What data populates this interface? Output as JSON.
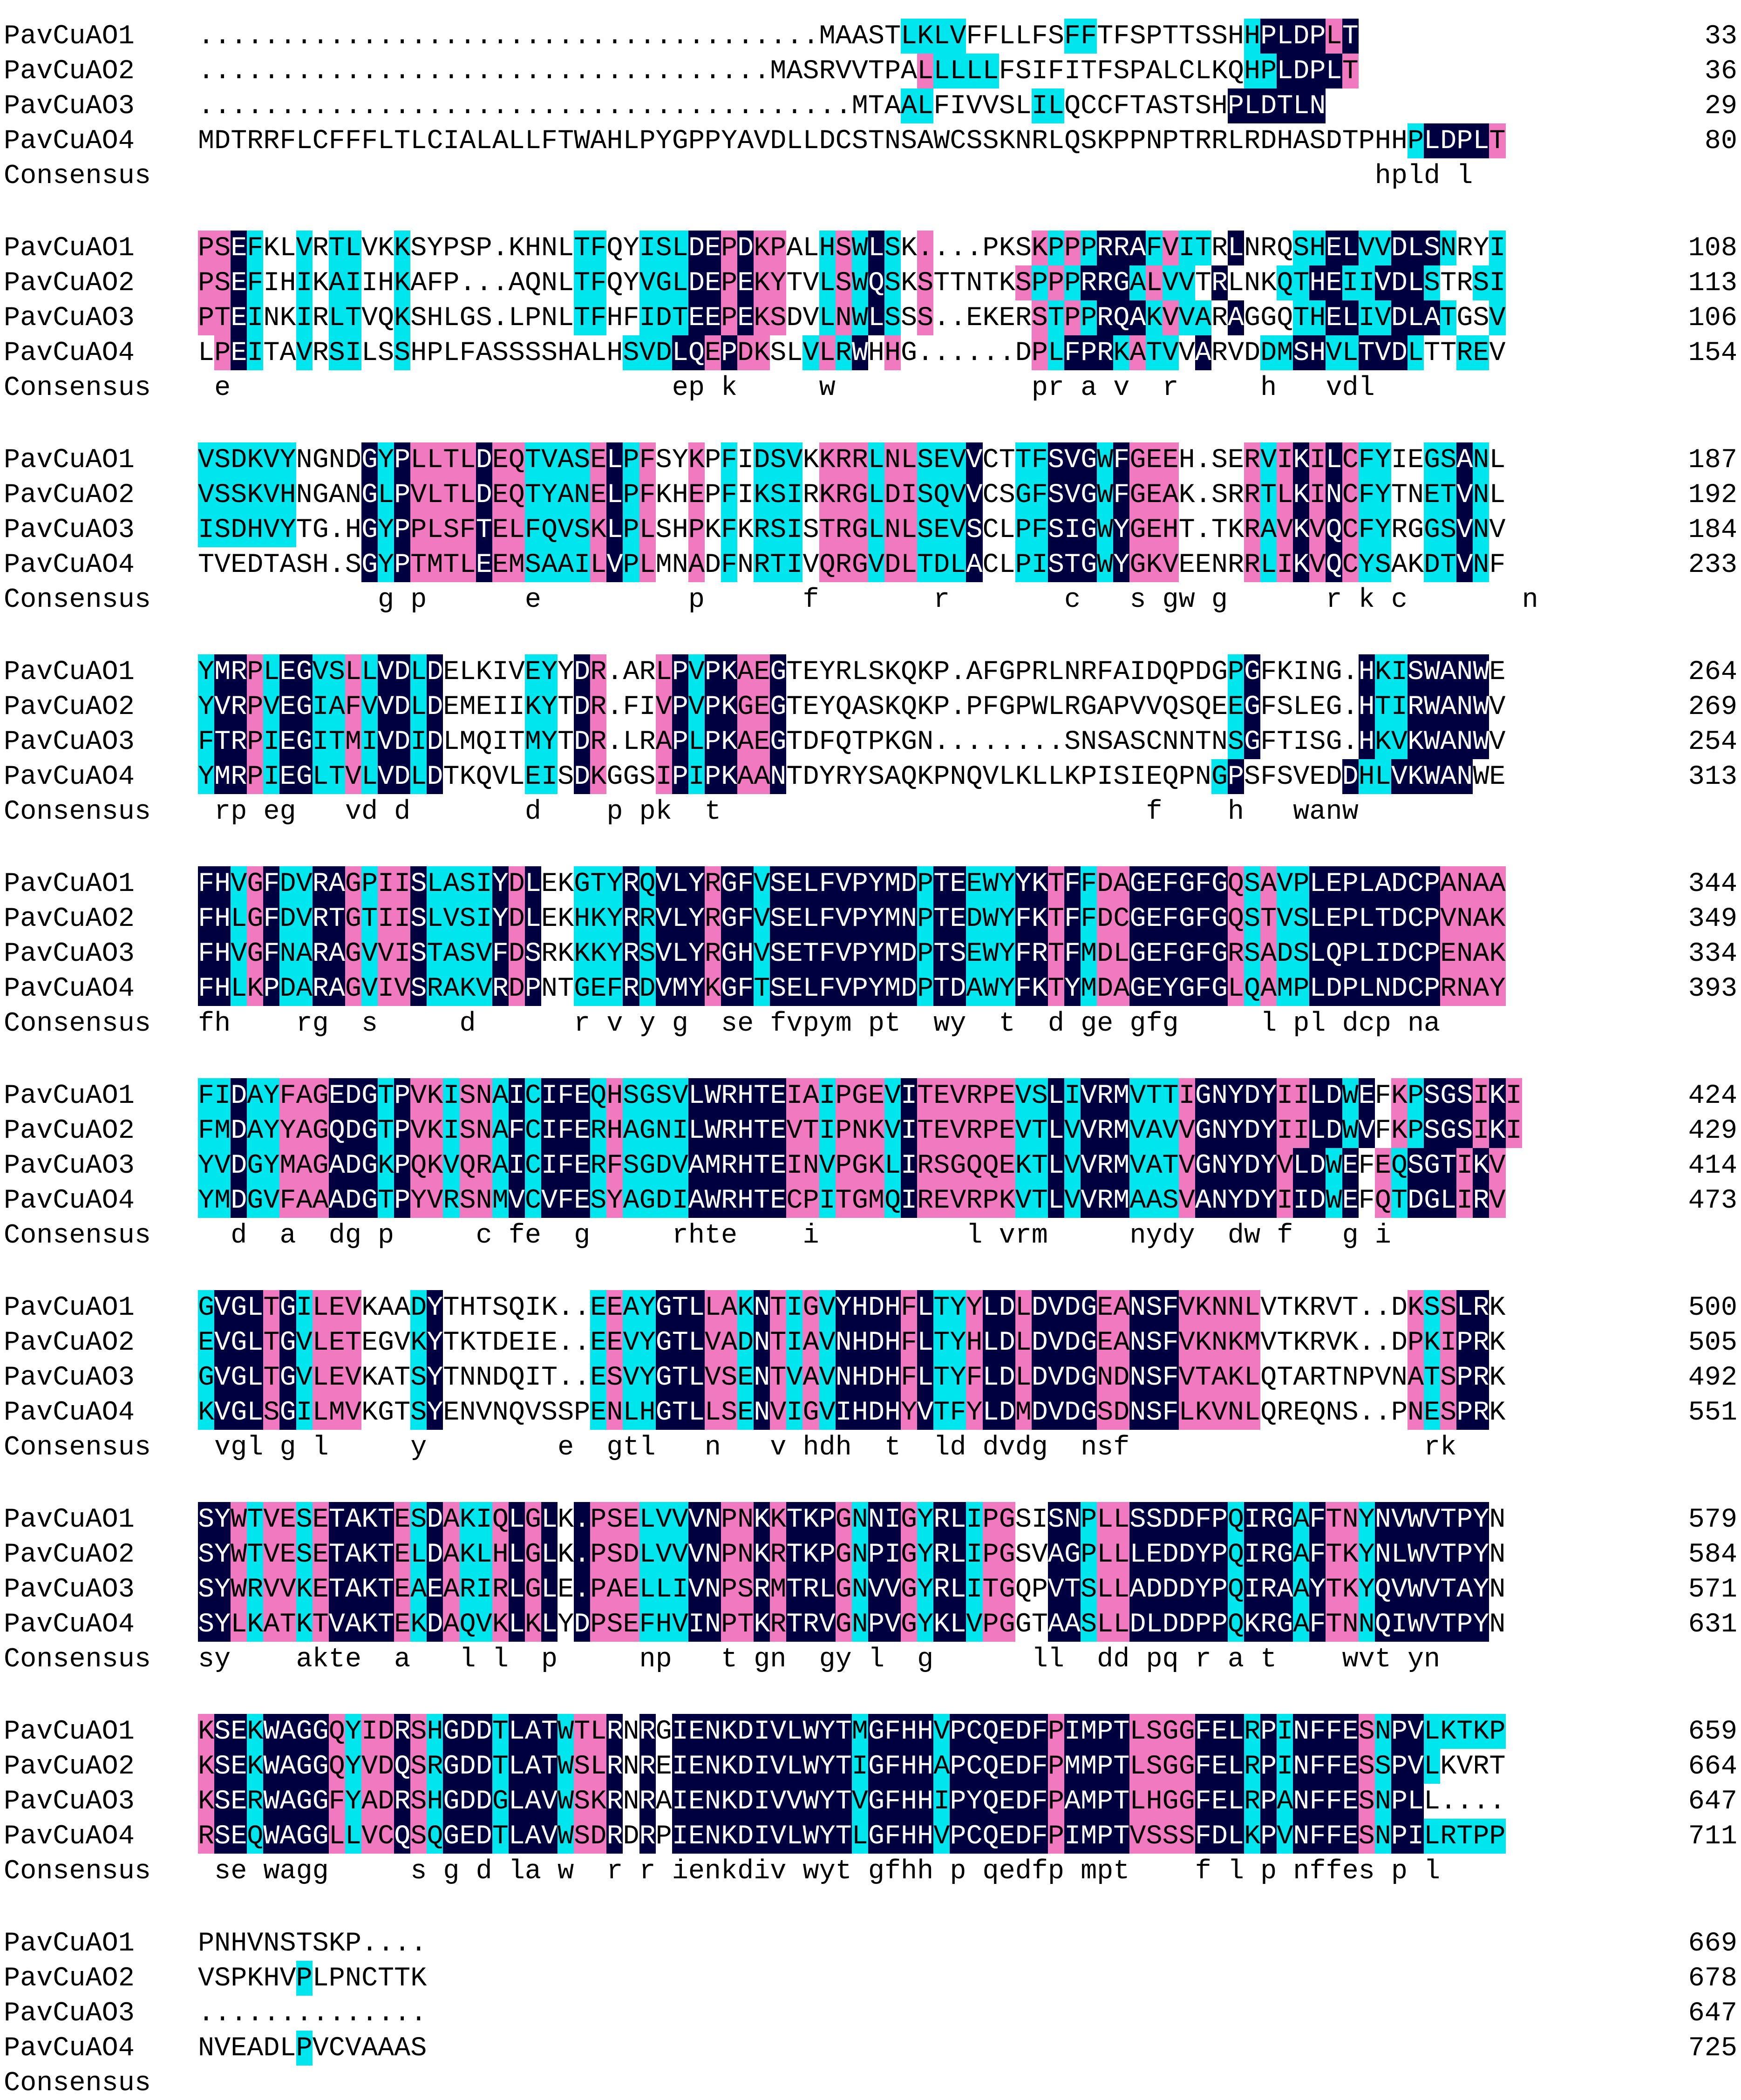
{
  "colors": {
    "none": "#ffffff",
    "identical": "#000040",
    "high": "#f079c0",
    "medium": "#00e6ee"
  },
  "blocks": [
    {
      "rows": [
        {
          "name": "PavCuAO1",
          "seq": "......................................MAASTLKLVFFLLFSFFTFSPTTSSHHPLDPLT",
          "mask": "......................................NNNNNBBBBNNNNNNBBNNNNNNNNNBDDDDPDP",
          "end": "33"
        },
        {
          "name": "PavCuAO2",
          "seq": "...................................MASRVVTPALLLLLFSIFITFSPALCLKQHPLDPLT",
          "mask": "...................................NNNNNNNNNPBBBBNNNNNNNNNNNNNNNBBDDDDPDP",
          "end": "36"
        },
        {
          "name": "PavCuAO3",
          "seq": "........................................MTAALFIVVSLILQCCFTASTSHPLDTLN",
          "mask": "........................................NNNBBNNNNNNBBNNNNNNNNNNDDDDDDPP",
          "end": "29"
        },
        {
          "name": "PavCuAO4",
          "seq": "MDTRRFLCFFFLTLCIALALLFTWAHLPYGPPYAVDLLDCSTNSAWCSSKNRLQSKPPNPTRRLRDHASDTPHHPLDPLT",
          "mask": "NNNNNNNNNNNNNNNNNNNNNNNNNNNNNNNNNNNNNNNNNNNNNNNNNNNNNNNNNNNNNNNNNNNNNNNNNNBDDDDPDP",
          "end": "80"
        },
        {
          "name": "Consensus",
          "seq": "                                                                        hpld l ",
          "mask": "",
          "end": ""
        }
      ]
    },
    {
      "rows": [
        {
          "name": "PavCuAO1",
          "seq": "PSEFKLVRTLVKKSYPSP.KHNLTFQYISLDEPDKPALHSWLSK....PKSKPPPRRAFVITRLNRQSHELVVDLSNRYI",
          "mask": "PPDBNNBNBBNNBNNNNN.NNNNBBNNBBBDDPDPPNNBPBDBNP....NNPBPBDDDBPBBNDNNNBBDDBBDDDBNNBB",
          "end": "108"
        },
        {
          "name": "PavCuAO2",
          "seq": "PSEFIHIKAIIHKAFP...AQNLTFQYVGLDEPEKYTVLSWQSKSTTNTKSPPPRRGALVVTRLNKQTHEIIVDLSTRSI",
          "mask": "PPDBNNBNBBNNBNNN...NNNNBBNNBBBDDPDPPNNBPBDBNPNNNNNPBPBDDDBPBBNDNNNBBDDBBDDDBNNBB",
          "end": "113"
        },
        {
          "name": "PavCuAO3",
          "seq": "PTEINKIRLTVQKSHLGS.LPNLTFHFIDTEEPEKSDVLNWLSSS..EKERSTPPRQAKVVARAGGQTHELIVDLATGSV",
          "mask": "PPDBNNBNBBNNBNNNNN.NNNNBBNNBBBDDPDPPNNBPBDBNP..NNNNPBPBDDDBPBBNDNNNBBDDBBDDDBNNBB",
          "end": "106"
        },
        {
          "name": "PavCuAO4",
          "seq": "LPEITAVRSILSSHPLFASSSSHALHSVDLQEPDKSLVLRWHHG......DPLFPRKATVVARVDDMSHVLTVDLTTREV",
          "mask": "NPDBNNBNBBNNBNNNNNNNNNNNNNBBBDDPDPPNNBPBDNP......NNPBDDDBPBBNDNNNBBDDBBDDDBNNBB",
          "end": "154"
        },
        {
          "name": "Consensus",
          "seq": " e                           ep k     w            pr a v  r     h   vdl      ",
          "mask": "",
          "end": ""
        }
      ]
    },
    {
      "rows": [
        {
          "name": "PavCuAO1",
          "seq": "VSDKVYNGNDGYPLLTLDEQTVASELPFSYKPFIDSVKKRRLNLSEVVCTTFSVGWFGEEH.SERVIKILCFYIEGSANL",
          "mask": "BBBBBBNNNNDBDPPPPDPPBBBBPDBPNNPNBNBBBNPPPBPPBBBDNNBBDDDBDPPPN.NNPBPDPDPBBNNBBDB",
          "end": "187"
        },
        {
          "name": "PavCuAO2",
          "seq": "VSSKVHNGANGLPVLTLDEQTYANELPFKHEPFIKSIRKRGLDISQVVCSGFSVGWFGEAK.SRRTLKINCFYTNETVNL",
          "mask": "BBBBBBNNNNDBDPPPPDPPBBBBPDBPNNPNBNBBBNPPPBPPBBBDNNBBDDDBDPPPN.NNPBPDPDPBBNNBBDB",
          "end": "192"
        },
        {
          "name": "PavCuAO3",
          "seq": "ISDHVYTG.HGYPPLSFTELFQVSKLPLSHPKFKRSISTRGLNLSEVSCLPFSIGWYGEHT.TKRAVKVQCFYRGGSVNV",
          "mask": "BBBBBBNN.NDBDPPPPDPPBBBBPDBPNNPNBNBBBNPPPBPPBBBDNNBBDDDBDPPPN.NNPBPDPDPBBNNBBDB",
          "end": "184"
        },
        {
          "name": "PavCuAO4",
          "seq": "TVEDTASH.SGYPTMTLEEMSAAILVPLMNADFNRTIVQRGVDLTDLACLPISTGWYGKVEENRRLIKVQCYSAKDTVNF",
          "mask": "NNNNNNNN.NDBDPPPPDPPBBBBPDBPNNPNBNBBBNPPPBPPBBBDNNBBDDDBDPPPNNNNPBPDPDPBBNNBBDB",
          "end": "233"
        },
        {
          "name": "Consensus",
          "seq": "           g p      e         p      f       r       c   s gw g      r k c       n ",
          "mask": "",
          "end": ""
        }
      ]
    },
    {
      "rows": [
        {
          "name": "PavCuAO1",
          "seq": "YMRPLEGVSLLVDLDELKIVEYYDR.ARLPVPKAEGTEYRLSKQKP.AFGPRLNRFAIDQPDGPGFKING.HKISWANWE",
          "mask": "BDDPBDDBBPBDDBDNNNNNBBNDP.NNPDBDDPPDNNNNNNNNN.NNNNNNNNNNNNNNNNNBDNNNN.NDBBDDDDD",
          "end": "264"
        },
        {
          "name": "PavCuAO2",
          "seq": "YVRPVEGIAFVVDLDEMEIIKYTDR.FIVPVPKGEGTEYQASKQKP.PFGPWLRGAPVVQSQEEGFSLEG.HTIRWANWV",
          "mask": "BDDPBDDBBPBDDBDNNNNNBBNDP.NNPDBDDPPDNNNNNNNNN.NNNNNNNNNNNNNNNNNBDNNNN.NDBBDDDDD",
          "end": "269"
        },
        {
          "name": "PavCuAO3",
          "seq": "FTRPIEGITMIVDIDLMQITMYTDR.LRAPLPKAEGTDFQTPKGN........SNSASCNNTNSGFTISG.HKVKWANWV",
          "mask": "BDDPBDDBBPBDDBDNNNNNBBNDP.NNPDBDDPPDNNNNNNN........NNNNNNNNNNNNBDNNNN.NDBBDDDDD",
          "end": "254"
        },
        {
          "name": "PavCuAO4",
          "seq": "YMRPIEGLTVLVDLDTKQVLEISDKGGSIPIPKAANTDYRYSAQKPNQVLKLLKPISIEQPNGPSFSVEDDHLVKWANWE",
          "mask": "BDDPBDDBBPBDDBDNNNNNBBNDPNNNPDBDDPPDNNNNNNNNNNNNNNNNNNNNNNNNNNBDNNNNNNDBBDDDDD",
          "end": "313"
        },
        {
          "name": "Consensus",
          "seq": " rp eg   vd d       d    p pk  t                          f    h   wanw ",
          "mask": "",
          "end": ""
        }
      ]
    },
    {
      "rows": [
        {
          "name": "PavCuAO1",
          "seq": "FHVGFDVRAGPIISLASIYDLEKGTYRQVLYRGFVSELFVPYMDPTEEWYYKTFFDAGEFGFGQSAVPLEPLADCPANAA",
          "mask": "DDBPDBBDDPBPPDBBBBDPDNNBBBDBDDDPDDBDDDDDDDDDBDDBBBDDPDBPPDDDDDDPBPBBDDDDDDDDPPPP",
          "end": "344"
        },
        {
          "name": "PavCuAO2",
          "seq": "FHLGFDVRTGTIISLVSIYDLEKHKYRRVLYRGFVSELFVPYMNPTEDWYFKTFFDCGEFGFGQSTVSLEPLTDCPVNAK",
          "mask": "DDBPDBBDDPBPPDBBBBDPDNNBBBDBDDDPDDBDDDDDDDDDBDDBBBDDPDBPPDDDDDDPBPBBDDDDDDDDPPPP",
          "end": "349"
        },
        {
          "name": "PavCuAO3",
          "seq": "FHVGFNARAGVVISTASVFDSRKKKYRSVLYRGHVSETFVPYMDPTSEWYFRTFMDLGEFGFGRSADSLQPLIDCPENAK",
          "mask": "DDBPDBBDDPBPPDBBBBDPDNNBBBDBDDDPDDBDDDDDDDDDBDDBBBDDPDBPPDDDDDDPBPBBDDDDDDDDPPPP",
          "end": "334"
        },
        {
          "name": "PavCuAO4",
          "seq": "FHLKPDARAGVIVSRAKVRDPNTGEFRDVMYKGFTSELFVPYMDPTDAWYFKTYMDAGEYGFGLQAMPLDPLNDCPRNAY",
          "mask": "DDBPDBBDDPBPPDBBBBDPDNNBBBDBDDDPDDBDDDDDDDDDBDDBBBDDPDBPPDDDDDDPBPBBDDDDDDDDPPPP",
          "end": "393"
        },
        {
          "name": "Consensus",
          "seq": "fh    rg  s     d      r v y g  se fvpym pt  wy  t  d ge gfg     l pl dcp na ",
          "mask": "",
          "end": ""
        }
      ]
    },
    {
      "rows": [
        {
          "name": "PavCuAO1",
          "seq": "FIDAYFAGEDGTPVKISNAICIFEQHSGSVLWRHTEIAIPGEVITEVRPEVSLIVRMVTTIGNYDYIILDWEFKPSGSIKI",
          "mask": "BBDBBPPPDDDBDPPBPPBDBDDDBPBBBBDDDDDDPPBPPPBDPPPPPPBBDBDDDBBBPDDDDDPPDDBDNPBDDDPDPD",
          "end": "424"
        },
        {
          "name": "PavCuAO2",
          "seq": "FMDAYYAGQDGTPVKISNAFCIFERHAGNILWRHTEVTIPNKVITEVRPEVTLVVRMVAVVGNYDYIILDWVFKPSGSIKI",
          "mask": "BBDBBPPPDDDBDPPBPPBDBDDDBPBBBBDDDDDDPPBPPPBDPPPPPPBBDBDDDBBBPDDDDDPPDDBDNPBDDDPDPD",
          "end": "429"
        },
        {
          "name": "PavCuAO3",
          "seq": "YVDGYMAGADGKPQKVQRAICIFERFSGDVAMRHTEINVPGKLIRSGQQEKTLVVRMVATVGNYDYVLDWEFEQSGTIKV",
          "mask": "BBDBBPPPDDDBDPPBPPBDBDDDBPBBBBDDDDDDPPBPPPBDPPPPPPBBDBDDDBBBPDDDDDPDDBDNPBDDDPDPD",
          "end": "414"
        },
        {
          "name": "PavCuAO4",
          "seq": "YMDGVFAAADGTPYVRSNMVCVFESYAGDIAWRHTECPITGMQIREVRPKVTLVVRMAASVANYDYIIDWEFQTDGLIRV",
          "mask": "BBDBBPPPDDDBDPPBPPBDBDDDBPBBBBDDDDDDPPBPPPBDPPPPPPBBDBDDDBBBPDDDDDPDDBDNPBDDDPDPD",
          "end": "473"
        },
        {
          "name": "Consensus",
          "seq": "  d  a  dg p     c fe  g     rhte    i         l vrm     nydy  dw f   g i ",
          "mask": "",
          "end": ""
        }
      ]
    },
    {
      "rows": [
        {
          "name": "PavCuAO1",
          "seq": "GVGLTGILEVKAADYTHTSQIK..EEAYGTLLAKNTIGVYHDHFLTYYLDLDVDGEANSFVKNNLVTKRVT..DKSSLRK",
          "mask": "BDDDPDBPPPNNNBDNNNNNNN..BPBBDDDPPBDPBPBDDDDPDBBPDDPDDDDPPDDDPPPPPNNNNN..NNPBPDD",
          "end": "500"
        },
        {
          "name": "PavCuAO2",
          "seq": "EVGLTGVLETEGVKYTKTDEIE..EEVYGTLVADNTIAVNHDHFLTYHLDLDVDGEANSFVKNKMVTKRVK..DPKIPRK",
          "mask": "BDDDPDBPPPNNNBDNNNNNNN..BPBBDDDPPBDPBPBDDDDPDBBPDDPDDDDPPDDDPPPPPNNNNN..NNPBPDD",
          "end": "505"
        },
        {
          "name": "PavCuAO3",
          "seq": "GVGLTGVLEVKATSYTNNDQIT..ESVYGTLVSENTVAVNHDHFLTYFLDLDVDGNDNSFVTAKLQTARTNPVNATSPRK",
          "mask": "BDDDPDBPPPNNNBDNNNNNNN..BPBBDDDPPBDPBPBDDDDPDBBPDDPDDDDPPDDDPPPPPNNNNNNNNNPBPDD",
          "end": "492"
        },
        {
          "name": "PavCuAO4",
          "seq": "KVGLSGILMVKGTSYENVNQVSSPENLHGTLLSENVIGVIHDHYVTFYLDMDVDGSDNSFLKVNLQREQNS..PNESPRK",
          "mask": "BDDDPDBPPPNNNBDNNNNNNNNNBPBBDDDPPBDPBPBDDDDPDBBPDDPDDDDPPDDDPPPPPNNNNN..NNPBPDD",
          "end": "551"
        },
        {
          "name": "Consensus",
          "seq": " vgl g l     y        e  gtl   n   v hdh  t  ld dvdg  nsf                  rk ",
          "mask": "",
          "end": ""
        }
      ]
    },
    {
      "rows": [
        {
          "name": "PavCuAO1",
          "seq": "SYWTVESETAKTESDAKIQLGLK.PSELVVVNPNKKTKPGNNIGYRLIPGSISNPLLSSDDFPQIRGAFTNYNVWVTPYN",
          "mask": "DDPBPPBPDDDDPBDPBBPDPD.DPPPBBBDDPPDPDDDPBDDPBDDBPPNNDDBPPDDDDDDBDDDBDPPBDDDDDDD",
          "end": "579"
        },
        {
          "name": "PavCuAO2",
          "seq": "SYWTVESETAKTELDAKLHLGLK.PSDLVVVNPNKRTKPGNPIGYRLIPGSVAGPLLLEDDYPQIRGAFTKYNLWVTPYN",
          "mask": "DDPBPPBPDDDDPBDPBBPDPD.DPPPBBBDDPPDPDDDPBDDPBDDBPPNNDDBPPDDDDDDBDDDBDPPBDDDDDDD",
          "end": "584"
        },
        {
          "name": "PavCuAO3",
          "seq": "SYWRVVKETAKTEAEARIRLGLE.PAELLIVNPSRMTRLGNVVGYRLITGQPVTSLLADDDYPQIRAAYTKYQVWVTAYN",
          "mask": "DDPBPPBPDDDDPBDPBBPDPD.DPPPBBBDDPPDPDDDPBDDPBDDBPPNNDDBPPDDDDDDBDDDBDPPBDDDDDDD",
          "end": "571"
        },
        {
          "name": "PavCuAO4",
          "seq": "SYLKATKTVAKTEKDAQVKLKLYDPSEFHVINPTKRTRVGNPVGYKLVPGGTAASLLDLDDPPQKRGAFTNNQIWVTPYN",
          "mask": "DDPBPPBPDDDDPBDPBBPDPDNDPPPBBBDDPPDPDDDPBDDPBDDBPPNNDDBPPDDDDDDBDDDBDPPBDDDDDDD",
          "end": "631"
        },
        {
          "name": "Consensus",
          "seq": "sy    akte  a   l l  p     np   t gn  gy l  g      ll  dd pq r a t    wvt yn ",
          "mask": "",
          "end": ""
        }
      ]
    },
    {
      "rows": [
        {
          "name": "PavCuAO1",
          "seq": "KSEKWAGGQYIDRSHGDDTLATWTLRNRGIENKDIVLWYTMGFHHVPCQEDFPIMPTLSGGFELRPINFFESNPVLKTKP",
          "mask": "PDDBDDDDPBPPDPBDDDBDDDBPPDNDNDDDDDDDDDDDBDDDDBDDDDDDPDDDDPPPPDDDBDBDDDDPBDDBBBBB",
          "end": "659"
        },
        {
          "name": "PavCuAO2",
          "seq": "KSEKWAGGQYVDQSRGDDTLATWSLRNREIENKDIVLWYTIGFHHAPCQEDFPMMPTLSGGFELRPINFFESSPVLKVRT",
          "mask": "PDDBDDDDPBPPDPBDDDBDDDBPPDNDNDDDDDDDDDDDBDDDDBDDDDDDPDDDDPPPPDDDBDBDDDDPBDDBNNNN",
          "end": "664"
        },
        {
          "name": "PavCuAO3",
          "seq": "KSERWAGGFYADRSHGDDGLAVWSKRNRAIENKDIVVWYTVGFHHIPYQEDFPAMPTLHGGFELRPANFFESNPLL....",
          "mask": "PDDBDDDDPBPPDPBDDDBDDDBPPDNDNDDDDDDDDDDDBDDDDBDDDDDDPDDDDPPPPDDDBDBDDDDPBDD....",
          "end": "647"
        },
        {
          "name": "PavCuAO4",
          "seq": "RSEQWAGGLLVCQSQGEDTLAVWSDRDRPIENKDIVLWYTLGFHHVPCQEDFPIMPTVSSSFDLKPVNFFESNPILRTPP",
          "mask": "PDDBDDDDPBPPDPBDDDBDDDBPPDNDNDDDDDDDDDDDBDDDDBDDDDDDPDDDDPPPPDDDBDBDDDDPBDDBBBBB",
          "end": "711"
        },
        {
          "name": "Consensus",
          "seq": " se wagg     s g d la w  r r ienkdiv wyt gfhh p qedfp mpt    f l p nffes p l    ",
          "mask": "",
          "end": ""
        }
      ]
    },
    {
      "rows": [
        {
          "name": "PavCuAO1",
          "seq": "PNHVNSTSKP....",
          "mask": "NNNNNNNNNN....",
          "end": "669"
        },
        {
          "name": "PavCuAO2",
          "seq": "VSPKHVPLPNCTTK",
          "mask": "NNNNNNBNNNNNNN",
          "end": "678"
        },
        {
          "name": "PavCuAO3",
          "seq": "..............",
          "mask": "..............",
          "end": "647"
        },
        {
          "name": "PavCuAO4",
          "seq": "NVEADLPVCVAAAS",
          "mask": "NNNNNNBNNNNNNN",
          "end": "725"
        },
        {
          "name": "Consensus",
          "seq": "",
          "mask": "",
          "end": ""
        }
      ]
    }
  ]
}
